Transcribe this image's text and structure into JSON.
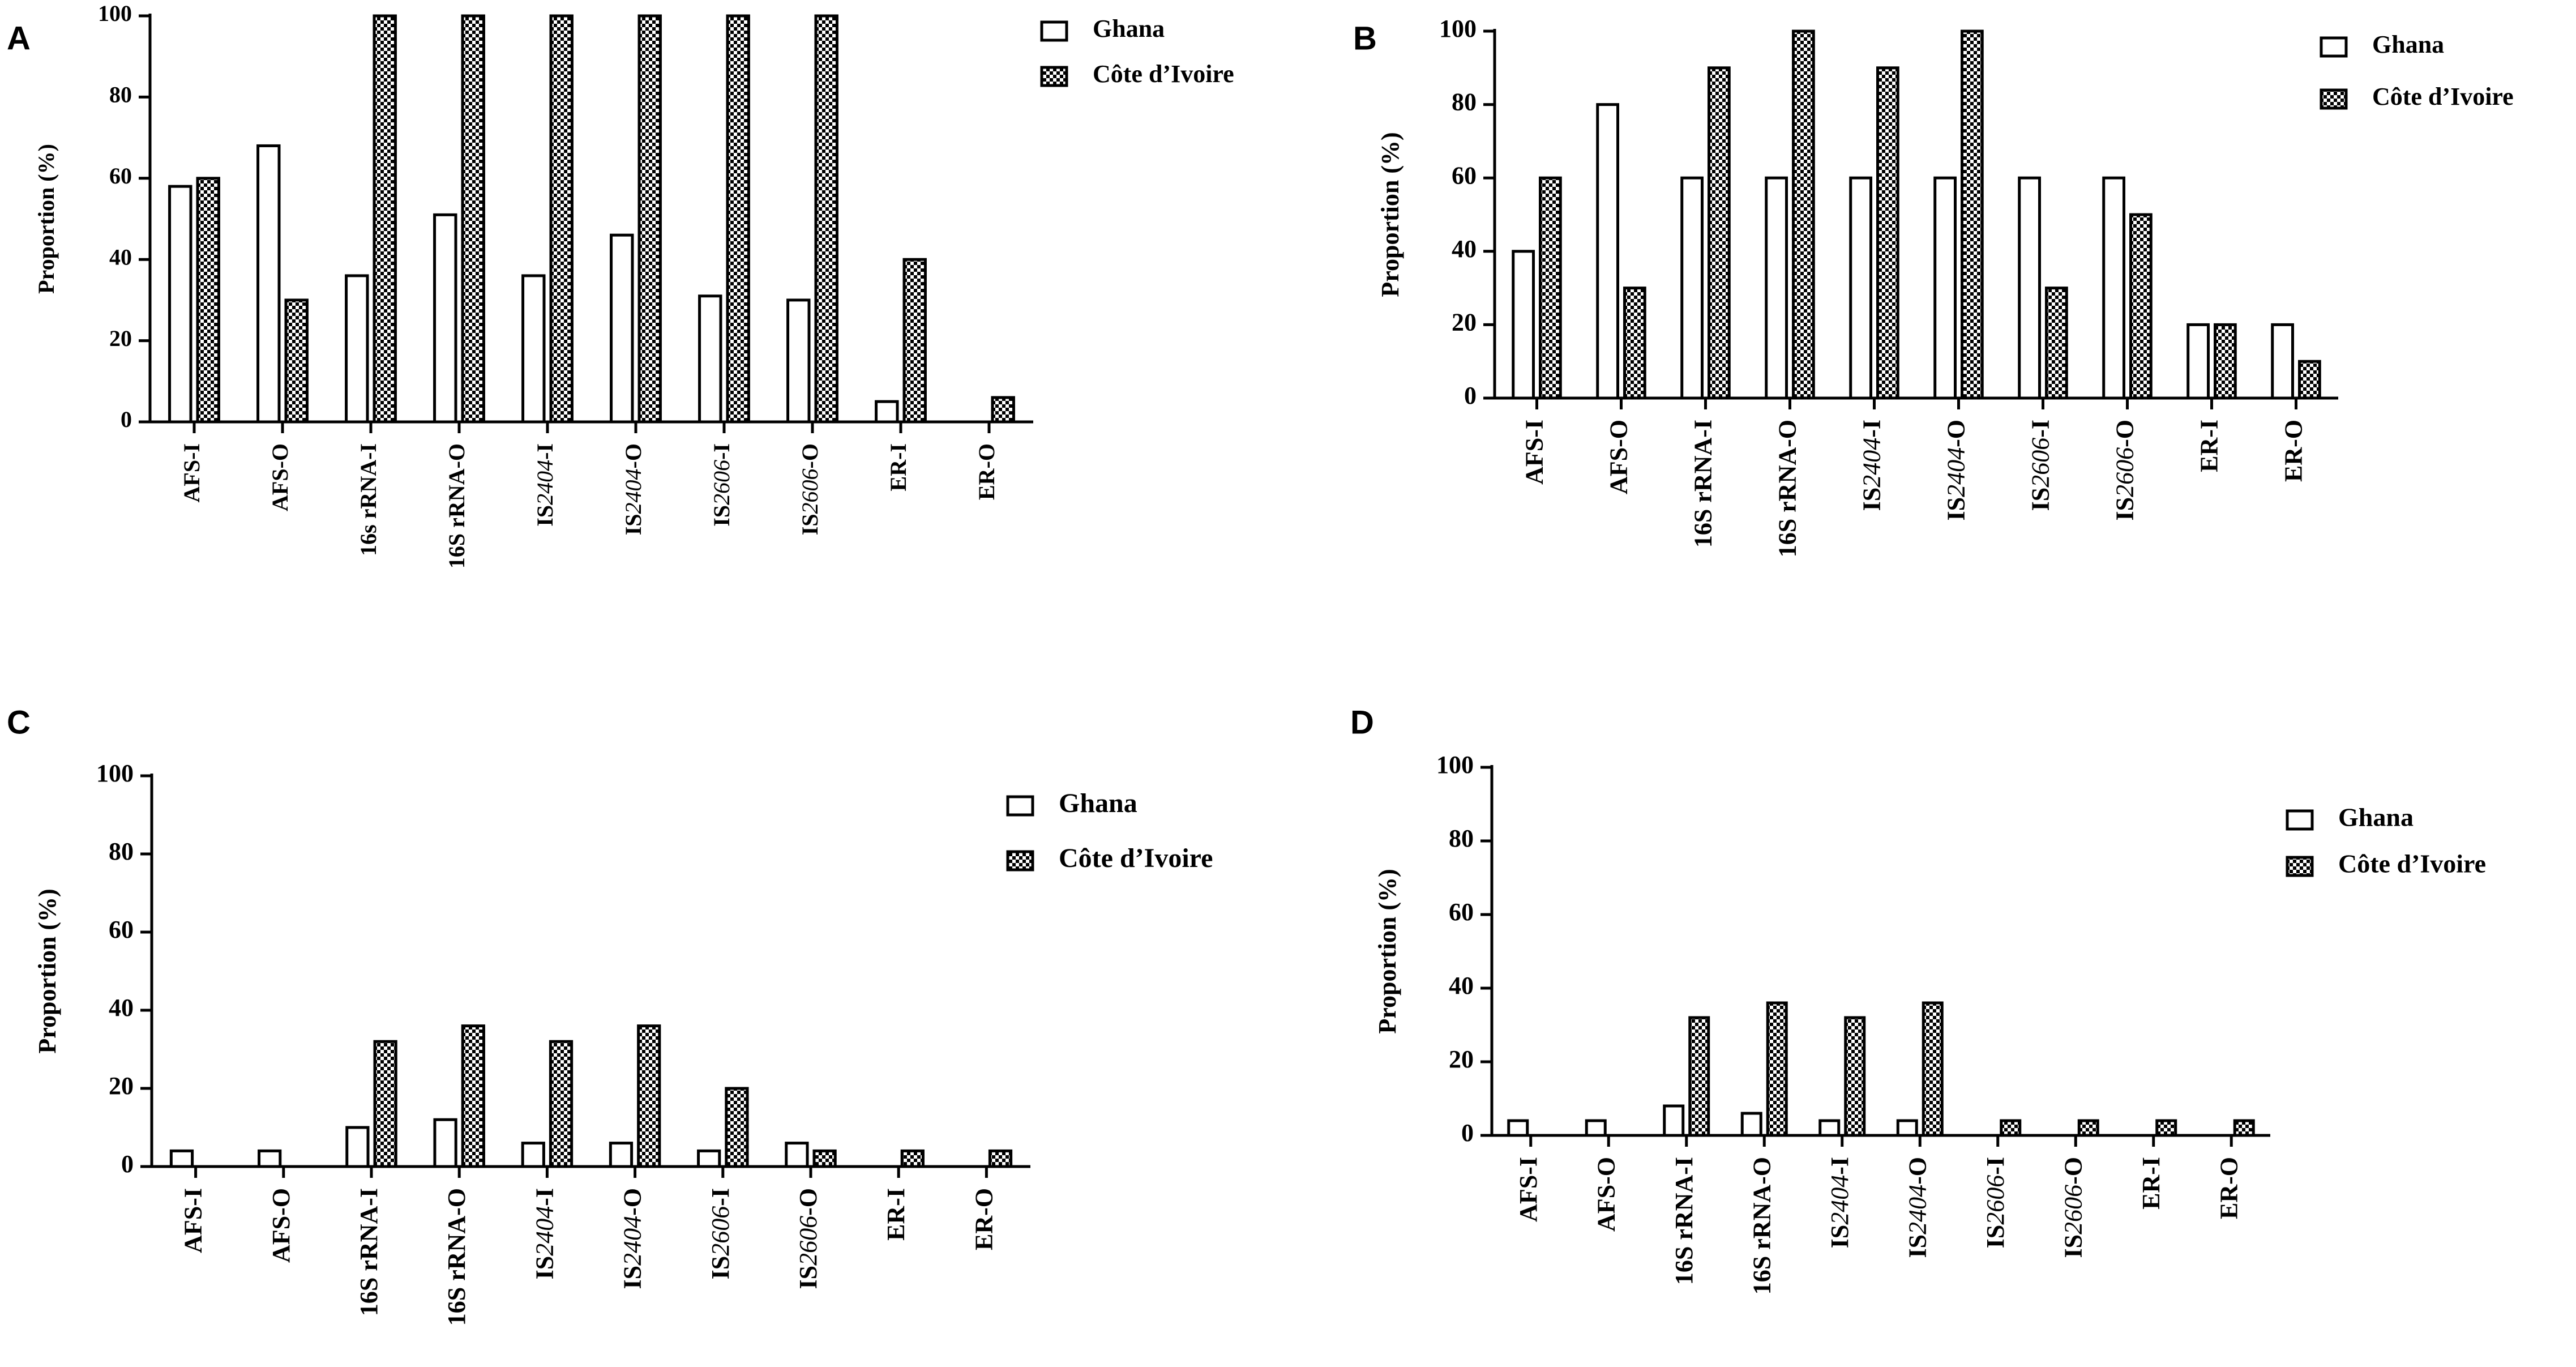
{
  "colors": {
    "ink": "#000000",
    "background": "#ffffff"
  },
  "legend": {
    "series": [
      "Ghana",
      "Côte d’Ivoire"
    ]
  },
  "chart_data": [
    {
      "panel": "A",
      "type": "bar",
      "ylabel": "Proportion (%)",
      "xlabel": "",
      "ylim": [
        0,
        100
      ],
      "yticks": [
        0,
        20,
        40,
        60,
        80,
        100
      ],
      "categories": [
        {
          "base": "AFS-I",
          "num": "",
          "tail": ""
        },
        {
          "base": "AFS-O",
          "num": "",
          "tail": ""
        },
        {
          "base": "16s rRNA-I",
          "num": "",
          "tail": ""
        },
        {
          "base": "16S rRNA-O",
          "num": "",
          "tail": ""
        },
        {
          "base": "IS",
          "num": "2404",
          "tail": "-I"
        },
        {
          "base": "IS",
          "num": "2404",
          "tail": "-O"
        },
        {
          "base": "IS",
          "num": "2606",
          "tail": "-I"
        },
        {
          "base": "IS",
          "num": "2606",
          "tail": "-O"
        },
        {
          "base": "ER-I",
          "num": "",
          "tail": ""
        },
        {
          "base": "ER-O",
          "num": "",
          "tail": ""
        }
      ],
      "series": [
        {
          "name": "Ghana",
          "pattern": "open",
          "values": [
            58,
            68,
            36,
            51,
            36,
            46,
            31,
            30,
            5,
            0
          ]
        },
        {
          "name": "Côte d’Ivoire",
          "pattern": "checker",
          "values": [
            60,
            30,
            100,
            100,
            100,
            100,
            100,
            100,
            40,
            6
          ]
        }
      ],
      "legend_position": "top-right",
      "grid": false
    },
    {
      "panel": "B",
      "type": "bar",
      "ylabel": "Proportion (%)",
      "xlabel": "",
      "ylim": [
        0,
        100
      ],
      "yticks": [
        0,
        20,
        40,
        60,
        80,
        100
      ],
      "categories": [
        {
          "base": "AFS-I",
          "num": "",
          "tail": ""
        },
        {
          "base": "AFS-O",
          "num": "",
          "tail": ""
        },
        {
          "base": "16S rRNA-I",
          "num": "",
          "tail": ""
        },
        {
          "base": "16S rRNA-O",
          "num": "",
          "tail": ""
        },
        {
          "base": "IS",
          "num": "2404",
          "tail": "-I"
        },
        {
          "base": "IS",
          "num": "2404",
          "tail": "-O"
        },
        {
          "base": "IS",
          "num": "2606",
          "tail": "-I"
        },
        {
          "base": "IS",
          "num": "2606",
          "tail": "-O"
        },
        {
          "base": "ER-I",
          "num": "",
          "tail": ""
        },
        {
          "base": "ER-O",
          "num": "",
          "tail": ""
        }
      ],
      "series": [
        {
          "name": "Ghana",
          "pattern": "open",
          "values": [
            40,
            80,
            60,
            60,
            60,
            60,
            60,
            60,
            20,
            20
          ]
        },
        {
          "name": "Côte d’Ivoire",
          "pattern": "checker",
          "values": [
            60,
            30,
            90,
            100,
            90,
            100,
            30,
            50,
            20,
            10
          ]
        }
      ],
      "legend_position": "top-right",
      "grid": false
    },
    {
      "panel": "C",
      "type": "bar",
      "ylabel": "Proportion (%)",
      "xlabel": "",
      "ylim": [
        0,
        100
      ],
      "yticks": [
        0,
        20,
        40,
        60,
        80,
        100
      ],
      "categories": [
        {
          "base": "AFS-I",
          "num": "",
          "tail": ""
        },
        {
          "base": "AFS-O",
          "num": "",
          "tail": ""
        },
        {
          "base": "16S rRNA-I",
          "num": "",
          "tail": ""
        },
        {
          "base": "16S rRNA-O",
          "num": "",
          "tail": ""
        },
        {
          "base": "IS",
          "num": "2404",
          "tail": "-I"
        },
        {
          "base": "IS",
          "num": "2404",
          "tail": "-O"
        },
        {
          "base": "IS",
          "num": "2606",
          "tail": "-I"
        },
        {
          "base": "IS",
          "num": "2606",
          "tail": "-O"
        },
        {
          "base": "ER-I",
          "num": "",
          "tail": ""
        },
        {
          "base": "ER-O",
          "num": "",
          "tail": ""
        }
      ],
      "series": [
        {
          "name": "Ghana",
          "pattern": "open",
          "values": [
            4,
            4,
            10,
            12,
            6,
            6,
            4,
            6,
            0,
            0
          ]
        },
        {
          "name": "Côte d’Ivoire",
          "pattern": "checker",
          "values": [
            0,
            0,
            32,
            36,
            32,
            36,
            20,
            4,
            4,
            4
          ]
        }
      ],
      "legend_position": "top-right",
      "grid": false
    },
    {
      "panel": "D",
      "type": "bar",
      "ylabel": "Proportion (%)",
      "xlabel": "",
      "ylim": [
        0,
        100
      ],
      "yticks": [
        0,
        20,
        40,
        60,
        80,
        100
      ],
      "categories": [
        {
          "base": "AFS-I",
          "num": "",
          "tail": ""
        },
        {
          "base": "AFS-O",
          "num": "",
          "tail": ""
        },
        {
          "base": "16S rRNA-I",
          "num": "",
          "tail": ""
        },
        {
          "base": "16S rRNA-O",
          "num": "",
          "tail": ""
        },
        {
          "base": "IS",
          "num": "2404",
          "tail": "-I"
        },
        {
          "base": "IS",
          "num": "2404",
          "tail": "-O"
        },
        {
          "base": "IS",
          "num": "2606",
          "tail": "-I"
        },
        {
          "base": "IS",
          "num": "2606",
          "tail": "-O"
        },
        {
          "base": "ER-I",
          "num": "",
          "tail": ""
        },
        {
          "base": "ER-O",
          "num": "",
          "tail": ""
        }
      ],
      "series": [
        {
          "name": "Ghana",
          "pattern": "open",
          "values": [
            4,
            4,
            8,
            6,
            4,
            4,
            0,
            0,
            0,
            0
          ]
        },
        {
          "name": "Côte d’Ivoire",
          "pattern": "checker",
          "values": [
            0,
            0,
            32,
            36,
            32,
            36,
            4,
            4,
            4,
            4
          ]
        }
      ],
      "legend_position": "top-right",
      "grid": false
    }
  ]
}
